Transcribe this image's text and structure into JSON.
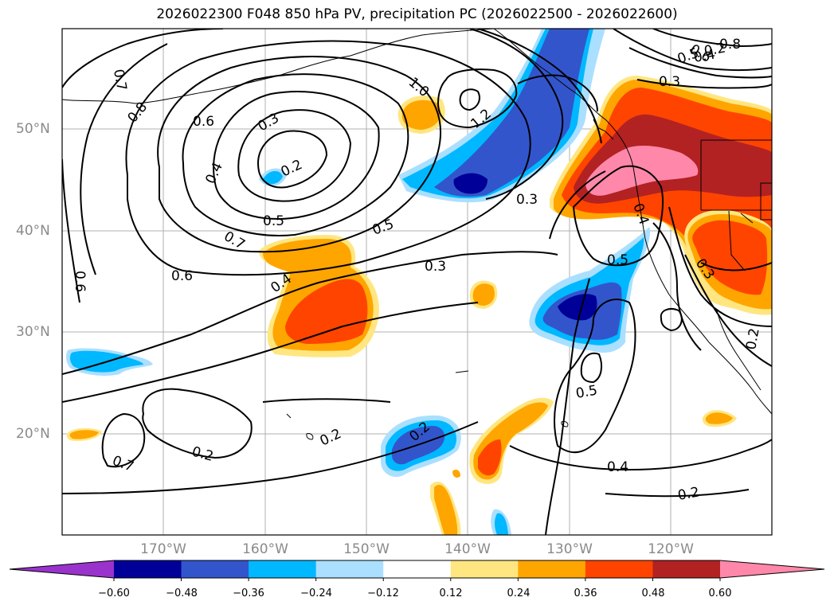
{
  "title": "2026022300 F048 850 hPa PV, precipitation PC (2026022500 - 2026022600)",
  "longitude_labels": [
    "170°W",
    "160°W",
    "150°W",
    "140°W",
    "130°W",
    "120°W"
  ],
  "latitude_labels": [
    "50°N",
    "40°N",
    "30°N",
    "20°N"
  ],
  "colorbar": {
    "ticks": [
      "−0.60",
      "−0.48",
      "−0.36",
      "−0.24",
      "−0.12",
      "0.12",
      "0.24",
      "0.36",
      "0.48",
      "0.60"
    ],
    "colors": [
      "#9933cc",
      "#000099",
      "#3355cc",
      "#00b8ff",
      "#aadfff",
      "#ffffff",
      "#ffe680",
      "#ffa500",
      "#ff4400",
      "#b22222",
      "#ff88aa"
    ]
  },
  "contour_labels": {
    "c1": "0.7",
    "c2": "0.8",
    "c3": "0.6",
    "c4": "0.3",
    "c5": "0.4",
    "c6": "0.2",
    "c7": "1.0",
    "c8": "1.2",
    "c9": "0.5",
    "c10": "0.3",
    "c11": "0.7",
    "c12": "0.5",
    "c13": "0.6",
    "c14": "0.4",
    "c15": "0.6",
    "c16": "0.3",
    "c17": "0.4",
    "c18": "0.5",
    "c19": "0.3",
    "c20": "0.5",
    "c21": "0.2",
    "c22": "0.2",
    "c23": "0.2",
    "c24": "0.2",
    "c25": "0.4",
    "c26": "0.2",
    "c27": "0.7",
    "c28": "0.8",
    "c29": "0.6",
    "c30": "0.5",
    "c31": "0.4",
    "c32": "0.3",
    "c33": "0.2"
  }
}
